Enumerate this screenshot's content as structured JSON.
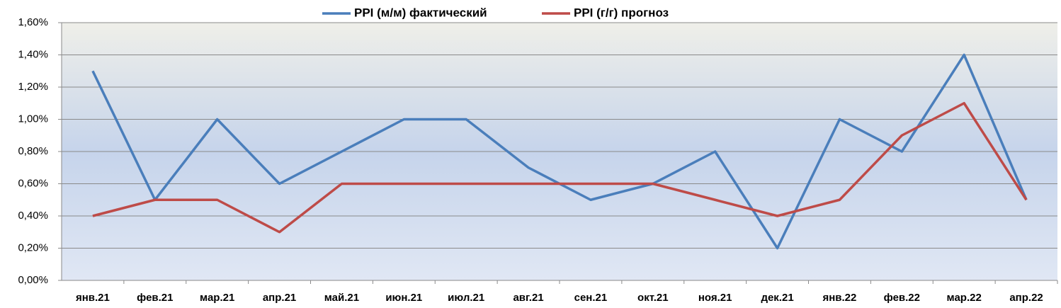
{
  "chart_data": {
    "type": "line",
    "categories": [
      "янв.21",
      "фев.21",
      "мар.21",
      "апр.21",
      "май.21",
      "июн.21",
      "июл.21",
      "авг.21",
      "сен.21",
      "окт.21",
      "ноя.21",
      "дек.21",
      "янв.22",
      "фев.22",
      "мар.22",
      "апр.22"
    ],
    "series": [
      {
        "name": "PPI (м/м) фактический",
        "color": "#4a7ebb",
        "values": [
          1.3,
          0.5,
          1.0,
          0.6,
          0.8,
          1.0,
          1.0,
          0.7,
          0.5,
          0.6,
          0.8,
          0.2,
          1.0,
          0.8,
          1.4,
          0.5
        ]
      },
      {
        "name": "PPI (г/г) прогноз",
        "color": "#be4b48",
        "values": [
          0.4,
          0.5,
          0.5,
          0.3,
          0.6,
          0.6,
          0.6,
          0.6,
          0.6,
          0.6,
          0.5,
          0.4,
          0.5,
          0.9,
          1.1,
          0.5
        ]
      }
    ],
    "ylim": [
      0,
      1.6
    ],
    "yticks": [
      {
        "value": 0,
        "label": "0,00%"
      },
      {
        "value": 0.2,
        "label": "0,20%"
      },
      {
        "value": 0.4,
        "label": "0,40%"
      },
      {
        "value": 0.6,
        "label": "0,60%"
      },
      {
        "value": 0.8,
        "label": "0,80%"
      },
      {
        "value": 1.0,
        "label": "1,00%"
      },
      {
        "value": 1.2,
        "label": "1,20%"
      },
      {
        "value": 1.4,
        "label": "1,40%"
      },
      {
        "value": 1.6,
        "label": "1,60%"
      }
    ],
    "grid": true,
    "legend": "top"
  }
}
